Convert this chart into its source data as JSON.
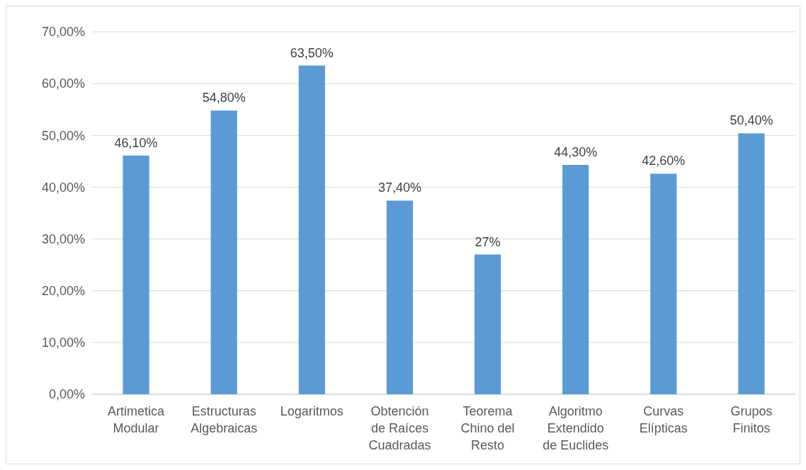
{
  "chart_data": {
    "type": "bar",
    "categories": [
      "Artimetica Modular",
      "Estructuras Algebraicas",
      "Logaritmos",
      "Obtención de Raíces Cuadradas",
      "Teorema Chino del Resto",
      "Algoritmo Extendido de Euclides",
      "Curvas Elípticas",
      "Grupos Finitos"
    ],
    "values": [
      46.1,
      54.8,
      63.5,
      37.4,
      27,
      44.3,
      42.6,
      50.4
    ],
    "value_labels": [
      "46,10%",
      "54,80%",
      "63,50%",
      "37,40%",
      "27%",
      "44,30%",
      "42,60%",
      "50,40%"
    ],
    "color": "#5b9bd5",
    "ylim": [
      0,
      70
    ],
    "yticks": [
      {
        "value": 0,
        "label": "0,00%"
      },
      {
        "value": 10,
        "label": "10,00%"
      },
      {
        "value": 20,
        "label": "20,00%"
      },
      {
        "value": 30,
        "label": "30,00%"
      },
      {
        "value": 40,
        "label": "40,00%"
      },
      {
        "value": 50,
        "label": "50,00%"
      },
      {
        "value": 60,
        "label": "60,00%"
      },
      {
        "value": 70,
        "label": "70,00%"
      }
    ],
    "grid": "y"
  }
}
